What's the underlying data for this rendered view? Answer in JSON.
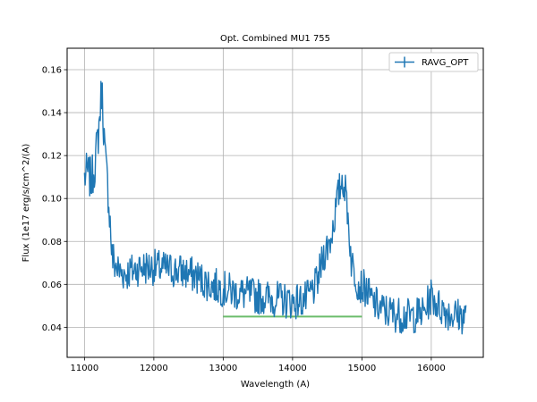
{
  "chart_data": {
    "type": "line",
    "title": "Opt. Combined MU1 755",
    "xlabel": "Wavelength (A)",
    "ylabel": "Flux (1e17 erg/s/cm^2/(A)",
    "xlim": [
      10750,
      16750
    ],
    "ylim": [
      0.026,
      0.17
    ],
    "xticks": [
      11000,
      12000,
      13000,
      14000,
      15000,
      16000
    ],
    "yticks": [
      0.04,
      0.06,
      0.08,
      0.1,
      0.12,
      0.14,
      0.16
    ],
    "grid": true,
    "legend_placement": "top-right",
    "colors": {
      "series": "#1f77b4",
      "band": "#2ca02c"
    },
    "series": [
      {
        "name": "RAVG_OPT",
        "x_range": [
          11000,
          16500
        ],
        "samples": 580,
        "noise": 0.0085,
        "seed": 7,
        "profile": [
          [
            11000,
            0.11
          ],
          [
            11050,
            0.112
          ],
          [
            11100,
            0.108
          ],
          [
            11150,
            0.116
          ],
          [
            11200,
            0.13
          ],
          [
            11250,
            0.152
          ],
          [
            11300,
            0.118
          ],
          [
            11350,
            0.1
          ],
          [
            11400,
            0.072
          ],
          [
            11500,
            0.066
          ],
          [
            11600,
            0.065
          ],
          [
            11800,
            0.068
          ],
          [
            12000,
            0.068
          ],
          [
            12200,
            0.067
          ],
          [
            12400,
            0.066
          ],
          [
            12600,
            0.064
          ],
          [
            12800,
            0.06
          ],
          [
            13000,
            0.058
          ],
          [
            13200,
            0.056
          ],
          [
            13400,
            0.055
          ],
          [
            13600,
            0.054
          ],
          [
            13800,
            0.053
          ],
          [
            14000,
            0.052
          ],
          [
            14200,
            0.053
          ],
          [
            14350,
            0.06
          ],
          [
            14450,
            0.074
          ],
          [
            14550,
            0.081
          ],
          [
            14650,
            0.1
          ],
          [
            14720,
            0.11
          ],
          [
            14780,
            0.1
          ],
          [
            14850,
            0.07
          ],
          [
            14950,
            0.06
          ],
          [
            15050,
            0.058
          ],
          [
            15150,
            0.052
          ],
          [
            15300,
            0.048
          ],
          [
            15500,
            0.046
          ],
          [
            15700,
            0.045
          ],
          [
            15900,
            0.047
          ],
          [
            16000,
            0.055
          ],
          [
            16100,
            0.05
          ],
          [
            16300,
            0.046
          ],
          [
            16500,
            0.045
          ]
        ]
      }
    ],
    "band": {
      "x": [
        13000,
        15000
      ],
      "y": 0.045
    }
  }
}
